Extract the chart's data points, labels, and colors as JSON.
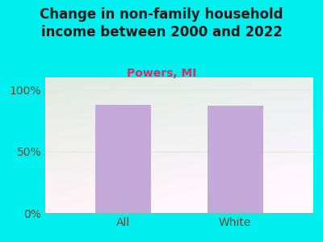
{
  "title": "Change in non-family household\nincome between 2000 and 2022",
  "subtitle": "Powers, MI",
  "categories": [
    "All",
    "White"
  ],
  "values": [
    88,
    87
  ],
  "bar_color": "#c4aad8",
  "background_color": "#00f0f0",
  "plot_bg_top": "#f5f5ee",
  "plot_bg_bottom": "#d8f0d0",
  "title_color": "#1a1a1a",
  "subtitle_color": "#cc3366",
  "tick_label_color": "#5a4a3a",
  "ylim": [
    0,
    110
  ],
  "yticks": [
    0,
    50,
    100
  ],
  "ytick_labels": [
    "0%",
    "50%",
    "100%"
  ],
  "title_fontsize": 12,
  "subtitle_fontsize": 10,
  "tick_fontsize": 10,
  "bar_width": 0.5
}
